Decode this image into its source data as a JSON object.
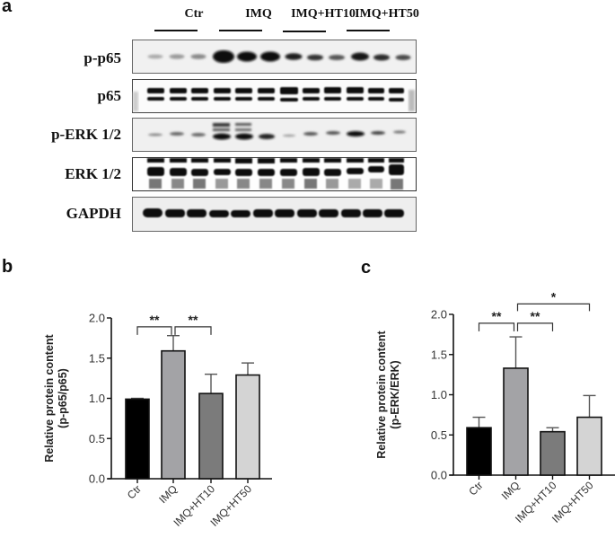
{
  "panels": {
    "a": {
      "letter": "a"
    },
    "b": {
      "letter": "b"
    },
    "c": {
      "letter": "c"
    }
  },
  "blot": {
    "groups": [
      "Ctr",
      "IMQ",
      "IMQ+HT10",
      "IMQ+HT50"
    ],
    "rows": [
      "p-p65",
      "p65",
      "p-ERK 1/2",
      "ERK 1/2",
      "GAPDH"
    ]
  },
  "chart_data": [
    {
      "type": "bar",
      "panel": "b",
      "title": "",
      "categories": [
        "Ctr",
        "IMQ",
        "IMQ+HT10",
        "IMQ+HT50"
      ],
      "values": [
        0.99,
        1.59,
        1.06,
        1.29
      ],
      "error_upper": [
        1.0,
        1.78,
        1.3,
        1.44
      ],
      "colors": [
        "#000000",
        "#a3a3a6",
        "#7b7b7b",
        "#d4d4d4"
      ],
      "xlabel": "",
      "ylabel": "Relative protein content\n(p-p65/p65)",
      "ylabel_line1": "Relative protein content",
      "ylabel_line2": "(p-p65/p65)",
      "ylim": [
        0,
        2.0
      ],
      "yticks": [
        "0.0",
        "0.5",
        "1.0",
        "1.5",
        "2.0"
      ],
      "grid": false,
      "annotations": [
        {
          "from": "Ctr",
          "to": "IMQ",
          "label": "**"
        },
        {
          "from": "IMQ",
          "to": "IMQ+HT10",
          "label": "**"
        }
      ]
    },
    {
      "type": "bar",
      "panel": "c",
      "title": "",
      "categories": [
        "Ctr",
        "IMQ",
        "IMQ+HT10",
        "IMQ+HT50"
      ],
      "values": [
        0.59,
        1.33,
        0.54,
        0.72
      ],
      "error_upper": [
        0.72,
        1.72,
        0.59,
        0.99
      ],
      "colors": [
        "#000000",
        "#a3a3a6",
        "#7b7b7b",
        "#d4d4d4"
      ],
      "xlabel": "",
      "ylabel": "Relative protein content\n(p-ERK/ERK)",
      "ylabel_line1": "Relative protein content",
      "ylabel_line2": "(p-ERK/ERK)",
      "ylim": [
        0,
        2.0
      ],
      "yticks": [
        "0.0",
        "0.5",
        "1.0",
        "1.5",
        "2.0"
      ],
      "grid": false,
      "annotations": [
        {
          "from": "Ctr",
          "to": "IMQ",
          "label": "**"
        },
        {
          "from": "IMQ",
          "to": "IMQ+HT10",
          "label": "**"
        },
        {
          "from": "IMQ",
          "to": "IMQ+HT50",
          "label": "*"
        }
      ]
    }
  ]
}
